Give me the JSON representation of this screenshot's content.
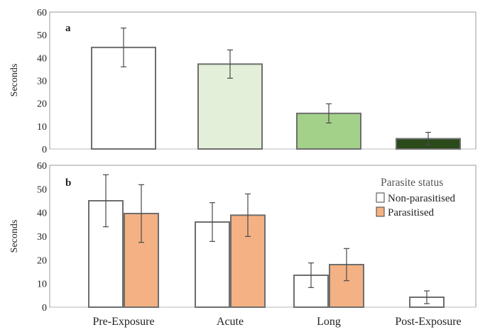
{
  "colors": {
    "axis": "#b8b8b8",
    "panel_border": "#9a9a9a",
    "bar_stroke": "#6e6e6e",
    "error": "#4a4a4a",
    "text": "#222222",
    "legend_title": "#555555"
  },
  "chart_data": [
    {
      "type": "bar",
      "panel_label": "a",
      "ylabel": "Seconds",
      "ylim": [
        0,
        60
      ],
      "yticks": [
        "0",
        "10",
        "20",
        "30",
        "40",
        "50",
        "60"
      ],
      "categories": [
        "Pre-Exposure",
        "Acute",
        "Long",
        "Post-Exposure"
      ],
      "series": [
        {
          "values": [
            44.5,
            37.2,
            15.6,
            4.5
          ],
          "error": [
            8.5,
            6.2,
            4.2,
            2.8
          ],
          "colors": [
            "#ffffff",
            "#e3efd8",
            "#a3d189",
            "#2a4a1a"
          ]
        }
      ],
      "grid": false,
      "legend": "none"
    },
    {
      "type": "bar",
      "panel_label": "b",
      "ylabel": "Seconds",
      "ylim": [
        0,
        60
      ],
      "yticks": [
        "0",
        "10",
        "20",
        "30",
        "40",
        "50",
        "60"
      ],
      "categories": [
        "Pre-Exposure",
        "Acute",
        "Long",
        "Post-Exposure"
      ],
      "series": [
        {
          "name": "Non-parasitised",
          "color": "#ffffff",
          "values": [
            45.0,
            36.0,
            13.5,
            4.2
          ],
          "error": [
            11.0,
            8.2,
            5.2,
            2.7
          ]
        },
        {
          "name": "Parasitised",
          "color": "#f4b183",
          "values": [
            39.6,
            38.9,
            18.0,
            null
          ],
          "error": [
            12.2,
            9.0,
            6.8,
            null
          ]
        }
      ],
      "legend_title": "Parasite status",
      "legend": "top-right",
      "grid": false
    }
  ]
}
